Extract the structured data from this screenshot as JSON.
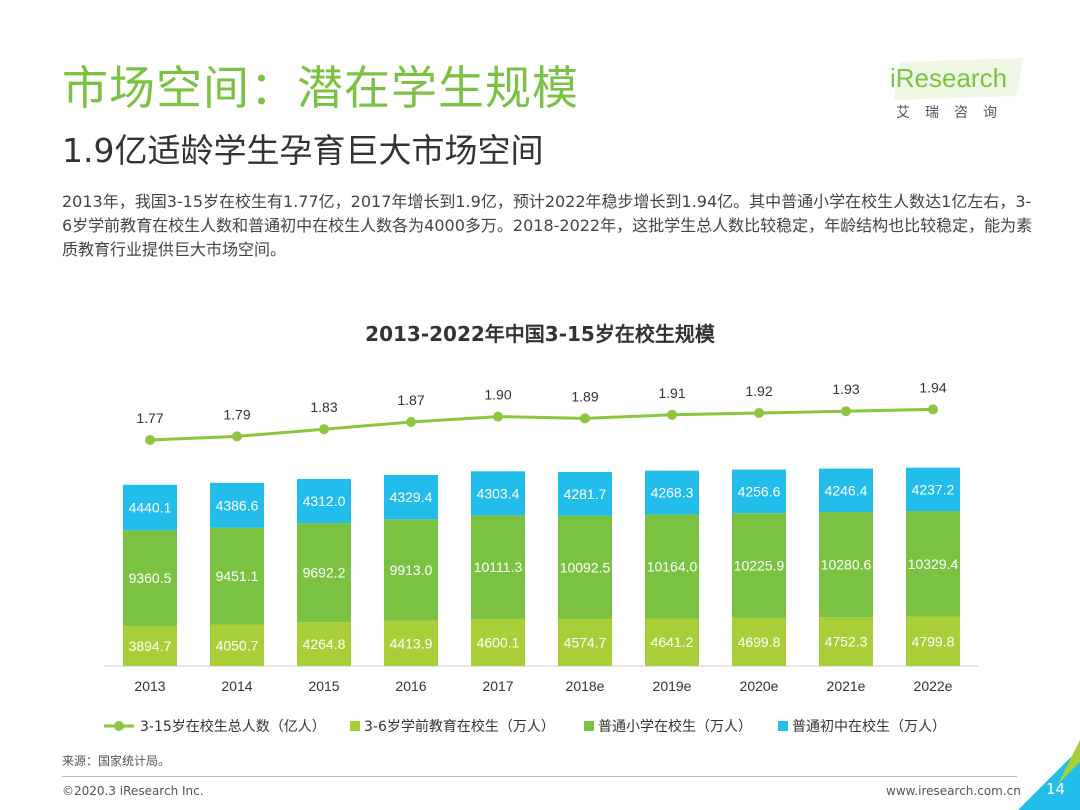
{
  "header": {
    "title": "市场空间：潜在学生规模",
    "subtitle": "1.9亿适龄学生孕育巨大市场空间",
    "description": "2013年，我国3-15岁在校生有1.77亿，2017年增长到1.9亿，预计2022年稳步增长到1.94亿。其中普通小学在校生人数达1亿左右，3-6岁学前教育在校生人数和普通初中在校生人数各为4000多万。2018-2022年，这批学生总人数比较稳定，年龄结构也比较稳定，能为素质教育行业提供巨大市场空间。"
  },
  "logo": {
    "text": "iResearch",
    "sub": "艾瑞咨询"
  },
  "colors": {
    "green": "#7cc242",
    "light_green": "#a9cf38",
    "mid_green": "#7cc242",
    "cyan": "#22bdea",
    "line": "#8cc63f"
  },
  "chart_data": {
    "type": "bar",
    "stacked": true,
    "title": "2013-2022年中国3-15岁在校生规模",
    "categories": [
      "2013",
      "2014",
      "2015",
      "2016",
      "2017",
      "2018e",
      "2019e",
      "2020e",
      "2021e",
      "2022e"
    ],
    "series": [
      {
        "name": "3-6岁学前教育在校生（万人）",
        "values": [
          3894.7,
          4050.7,
          4264.8,
          4413.9,
          4600.1,
          4574.7,
          4641.2,
          4699.8,
          4752.3,
          4799.8
        ]
      },
      {
        "name": "普通小学在校生（万人）",
        "values": [
          9360.5,
          9451.1,
          9692.2,
          9913.0,
          10111.3,
          10092.5,
          10164.0,
          10225.9,
          10280.6,
          10329.4
        ]
      },
      {
        "name": "普通初中在校生（万人）",
        "values": [
          4440.1,
          4386.6,
          4312.0,
          4329.4,
          4303.4,
          4281.7,
          4268.3,
          4256.6,
          4246.4,
          4237.2
        ]
      }
    ],
    "line_series": {
      "name": "3-15岁在校生总人数（亿人）",
      "values": [
        1.77,
        1.79,
        1.83,
        1.87,
        1.9,
        1.89,
        1.91,
        1.92,
        1.93,
        1.94
      ]
    },
    "legend_position": "bottom"
  },
  "footer": {
    "source": "来源：国家统计局。",
    "copyright": "©2020.3 iResearch Inc.",
    "website": "www.iresearch.com.cn",
    "page": "14"
  }
}
